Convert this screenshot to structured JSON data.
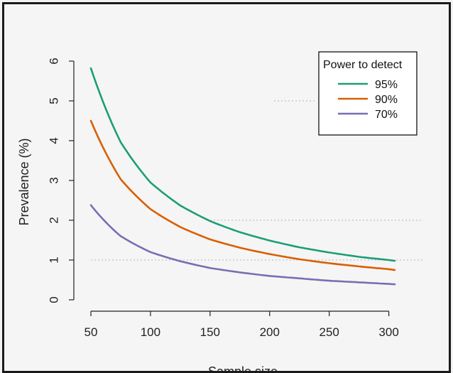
{
  "chart_data": {
    "type": "line",
    "title": "",
    "xlabel": "Sample size",
    "ylabel": "Prevalence (%)",
    "xlim": [
      50,
      305
    ],
    "ylim": [
      0,
      6
    ],
    "xticks": [
      50,
      100,
      150,
      200,
      250,
      300
    ],
    "yticks": [
      0,
      1,
      2,
      3,
      4,
      5,
      6
    ],
    "grid": "dotted horizontal reference lines at 1 and 2 (y), partial line at 5",
    "legend": {
      "title": "Power to detect",
      "placement": "top-right"
    },
    "x": [
      50,
      75,
      100,
      125,
      150,
      175,
      200,
      225,
      250,
      275,
      300,
      305
    ],
    "series": [
      {
        "name": "95%",
        "color": "#1b9e77",
        "values": [
          5.82,
          3.96,
          2.95,
          2.37,
          1.98,
          1.7,
          1.49,
          1.32,
          1.19,
          1.08,
          1.0,
          0.98
        ]
      },
      {
        "name": "90%",
        "color": "#d95f02",
        "values": [
          4.5,
          3.03,
          2.28,
          1.83,
          1.52,
          1.31,
          1.15,
          1.02,
          0.92,
          0.84,
          0.77,
          0.75
        ]
      },
      {
        "name": "70%",
        "color": "#7570b3",
        "values": [
          2.38,
          1.6,
          1.2,
          0.97,
          0.8,
          0.69,
          0.6,
          0.54,
          0.48,
          0.44,
          0.4,
          0.39
        ]
      }
    ]
  }
}
